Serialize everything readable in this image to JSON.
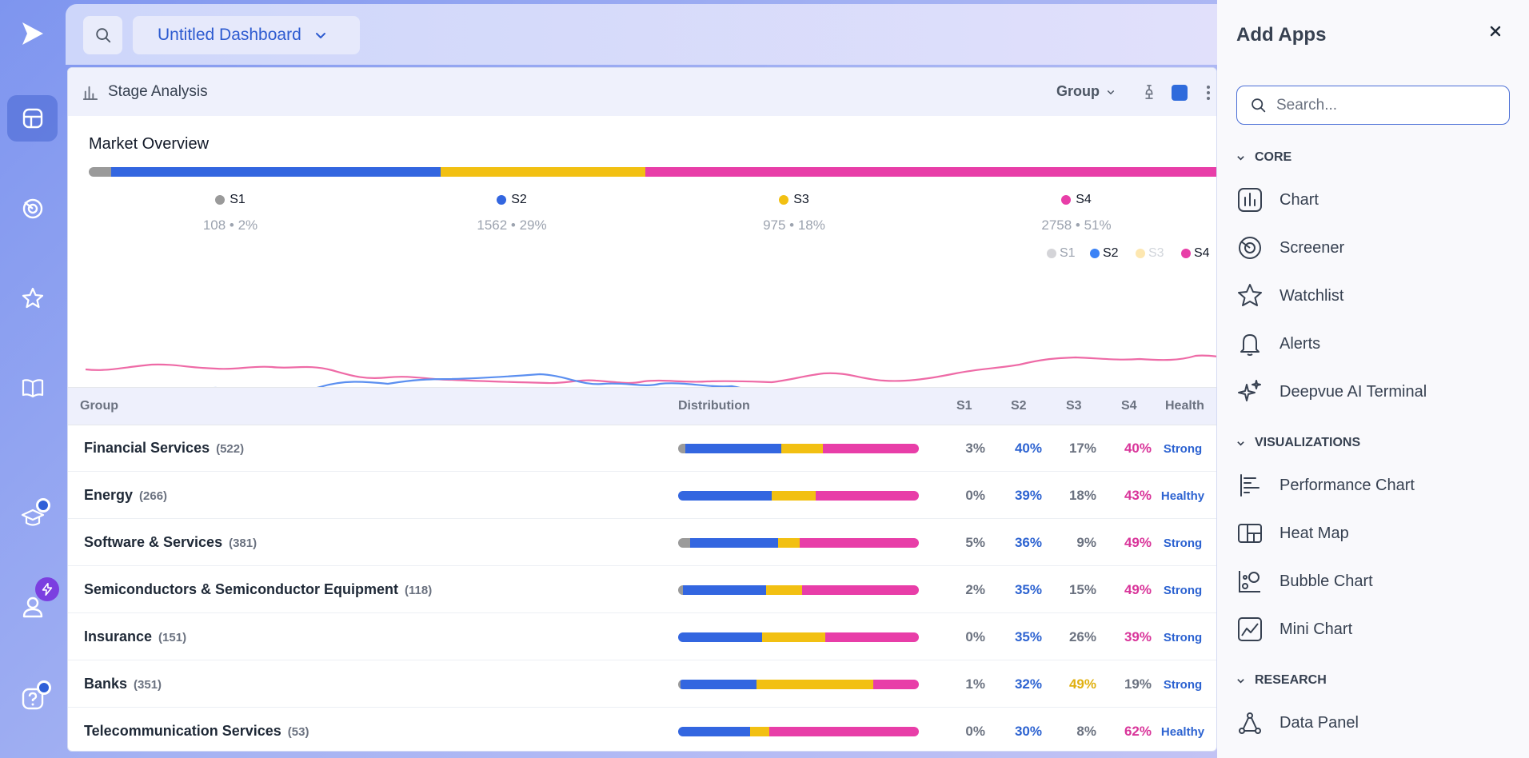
{
  "topbar": {
    "dashboard_name": "Untitled Dashboard"
  },
  "panel": {
    "title": "Stage Analysis",
    "group_label": "Group"
  },
  "market": {
    "title": "Market Overview",
    "stages": [
      {
        "name": "S1",
        "value": "108 • 2%",
        "color": "#9a9a9a"
      },
      {
        "name": "S2",
        "value": "1562 • 29%",
        "color": "#3366e0"
      },
      {
        "name": "S3",
        "value": "975 • 18%",
        "color": "#f2c012"
      },
      {
        "name": "S4",
        "value": "2758 • 51%",
        "color": "#e83ea8"
      }
    ],
    "bar_shares": [
      2,
      29,
      18,
      51
    ],
    "legend": [
      {
        "name": "S1",
        "active": false
      },
      {
        "name": "S2",
        "active": true
      },
      {
        "name": "S3",
        "active": false
      },
      {
        "name": "S4",
        "active": true
      }
    ]
  },
  "table": {
    "headers": {
      "group": "Group",
      "distribution": "Distribution",
      "s1": "S1",
      "s2": "S2",
      "s3": "S3",
      "s4": "S4",
      "health": "Health"
    },
    "rows": [
      {
        "name": "Financial Services",
        "count": "(522)",
        "s1": "3%",
        "s2": "40%",
        "s3": "17%",
        "s4": "40%",
        "health": "Strong",
        "dist": [
          3,
          40,
          17,
          40
        ],
        "hi": "s2s4"
      },
      {
        "name": "Energy",
        "count": "(266)",
        "s1": "0%",
        "s2": "39%",
        "s3": "18%",
        "s4": "43%",
        "health": "Healthy",
        "dist": [
          0,
          39,
          18,
          43
        ],
        "hi": "s2s4"
      },
      {
        "name": "Software & Services",
        "count": "(381)",
        "s1": "5%",
        "s2": "36%",
        "s3": "9%",
        "s4": "49%",
        "health": "Strong",
        "dist": [
          5,
          36,
          9,
          49
        ],
        "hi": "s2s4"
      },
      {
        "name": "Semiconductors & Semiconductor Equipment",
        "count": "(118)",
        "s1": "2%",
        "s2": "35%",
        "s3": "15%",
        "s4": "49%",
        "health": "Strong",
        "dist": [
          2,
          35,
          15,
          49
        ],
        "hi": "s2s4"
      },
      {
        "name": "Insurance",
        "count": "(151)",
        "s1": "0%",
        "s2": "35%",
        "s3": "26%",
        "s4": "39%",
        "health": "Strong",
        "dist": [
          0,
          35,
          26,
          39
        ],
        "hi": "s2s4"
      },
      {
        "name": "Banks",
        "count": "(351)",
        "s1": "1%",
        "s2": "32%",
        "s3": "49%",
        "s4": "19%",
        "health": "Strong",
        "dist": [
          1,
          32,
          49,
          19
        ],
        "hi": "s2s3"
      },
      {
        "name": "Telecommunication Services",
        "count": "(53)",
        "s1": "0%",
        "s2": "30%",
        "s3": "8%",
        "s4": "62%",
        "health": "Healthy",
        "dist": [
          0,
          30,
          8,
          62
        ],
        "hi": "s2s4"
      }
    ]
  },
  "add_apps": {
    "title": "Add Apps",
    "search_placeholder": "Search...",
    "sections": [
      {
        "label": "CORE",
        "items": [
          {
            "label": "Chart",
            "icon": "bar-chart-icon"
          },
          {
            "label": "Screener",
            "icon": "radar-icon"
          },
          {
            "label": "Watchlist",
            "icon": "star-icon"
          },
          {
            "label": "Alerts",
            "icon": "bell-icon"
          },
          {
            "label": "Deepvue AI Terminal",
            "icon": "sparkles-icon"
          }
        ]
      },
      {
        "label": "VISUALIZATIONS",
        "items": [
          {
            "label": "Performance Chart",
            "icon": "performance-chart-icon"
          },
          {
            "label": "Heat Map",
            "icon": "heat-map-icon"
          },
          {
            "label": "Bubble Chart",
            "icon": "bubble-chart-icon"
          },
          {
            "label": "Mini Chart",
            "icon": "mini-chart-icon"
          }
        ]
      },
      {
        "label": "RESEARCH",
        "items": [
          {
            "label": "Data Panel",
            "icon": "data-panel-icon"
          }
        ]
      }
    ]
  },
  "colors": {
    "s1": "#9a9a9a",
    "s2": "#3366e0",
    "s3": "#f2c012",
    "s4": "#e83ea8",
    "line_s2": "#5b8ff0",
    "line_s4": "#ee6aa6"
  }
}
